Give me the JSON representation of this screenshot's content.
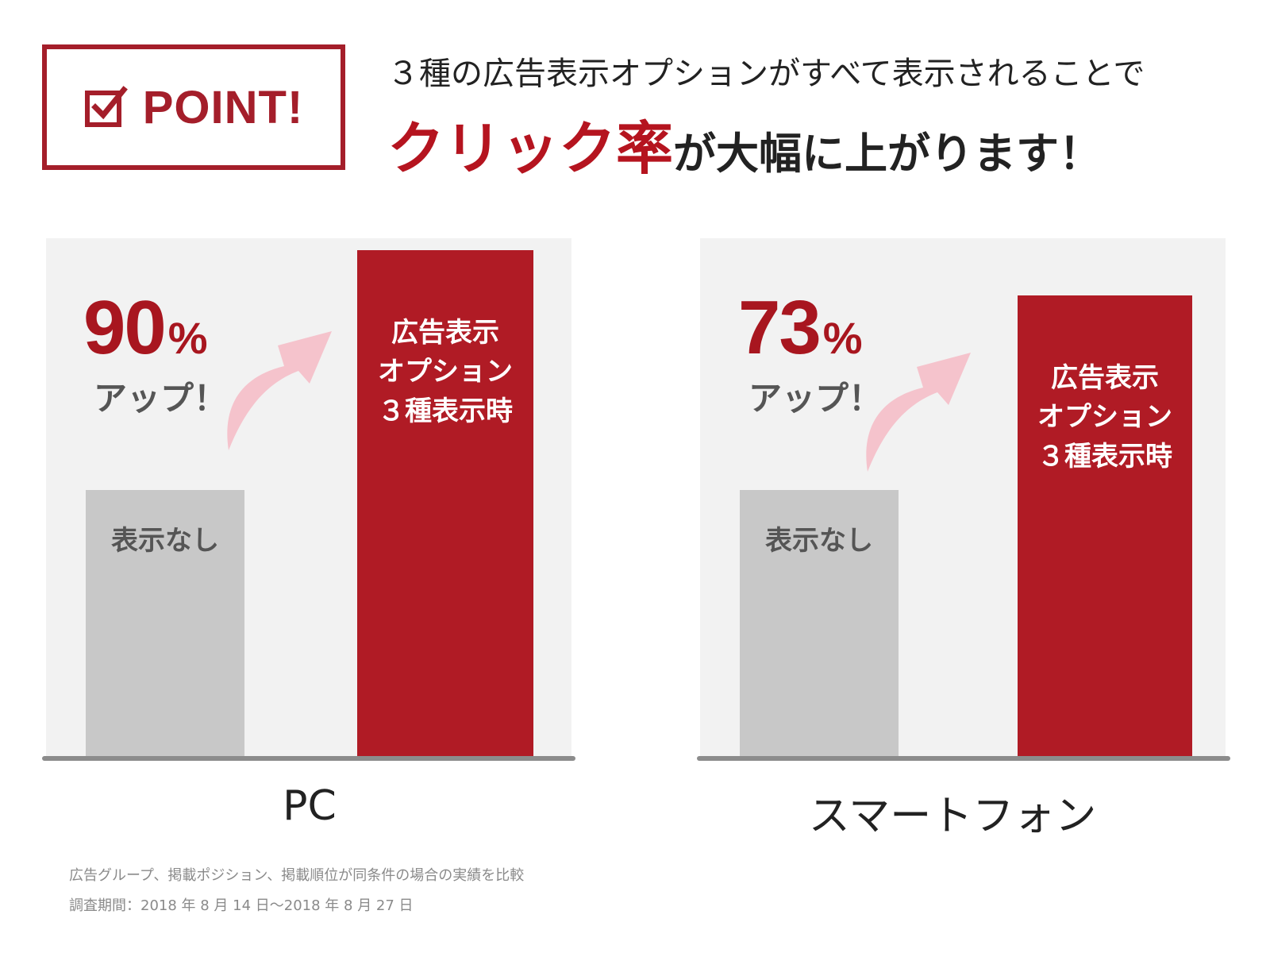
{
  "header": {
    "badge_icon": "checkbox-check-icon",
    "badge_label": "POINT!",
    "line1": "３種の広告表示オプションがすべて表示されることで",
    "line2_highlight": "クリック率",
    "line2_rest": "が大幅に上がります！"
  },
  "colors": {
    "accent_red": "#b01b25",
    "baseline_gray": "#c8c8c8",
    "panel_bg": "#f2f2f2",
    "arrow_pink": "#f5c3cc"
  },
  "chart_data": [
    {
      "type": "bar",
      "title": "PC",
      "categories": [
        "表示なし",
        "広告表示\nオプション\n３種表示時"
      ],
      "values": [
        1.0,
        1.9
      ],
      "annotation": {
        "value": "90",
        "unit": "%",
        "text": "アップ！"
      }
    },
    {
      "type": "bar",
      "title": "スマートフォン",
      "categories": [
        "表示なし",
        "広告表示\nオプション\n３種表示時"
      ],
      "values": [
        1.0,
        1.73
      ],
      "annotation": {
        "value": "73",
        "unit": "%",
        "text": "アップ！"
      }
    }
  ],
  "notes": [
    "広告グループ、掲載ポジション、掲載順位が同条件の場合の実績を比較",
    "調査期間：2018 年 8 月 14 日〜2018 年 8 月 27 日"
  ]
}
